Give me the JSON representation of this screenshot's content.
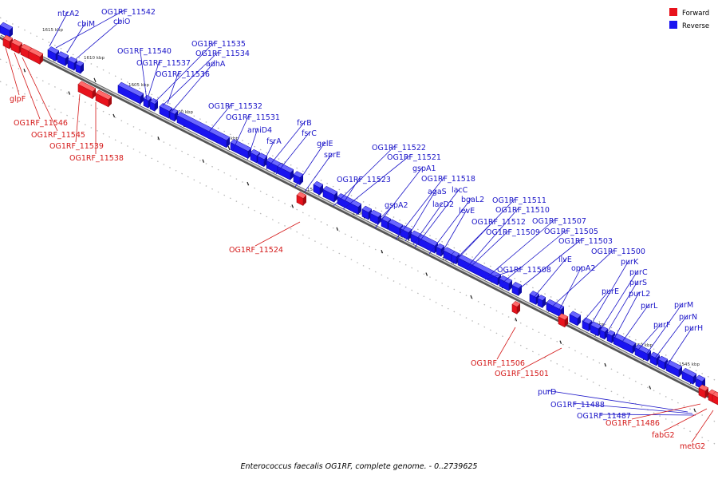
{
  "caption": "Enterococcus faecalis OG1RF, complete genome. - 0..2739625",
  "colors": {
    "forward": "#e8121c",
    "reverse": "#1a14f0",
    "forward_label": "#d41818",
    "reverse_label": "#1a14c8"
  },
  "legend": {
    "forward_label": "Forward",
    "reverse_label": "Reverse"
  },
  "ticks": [
    "1615 kbp",
    "1610 kbp",
    "1605 kbp",
    "1600 kbp",
    "1595 kbp",
    "1590 kbp",
    "1585 kbp",
    "1580 kbp",
    "1575 kbp",
    "1570 kbp",
    "1565 kbp",
    "1560 kbp",
    "1555 kbp",
    "1550 kbp",
    "1545 kbp"
  ],
  "reverse_labels": [
    "ntcA2",
    "OG1RF_11542",
    "cbiM",
    "cbiO",
    "OG1RF_11540",
    "OG1RF_11535",
    "OG1RF_11534",
    "OG1RF_11537",
    "adhA",
    "OG1RF_11536",
    "OG1RF_11532",
    "OG1RF_11531",
    "amiD4",
    "fsrB",
    "fsrC",
    "fsrA",
    "gelE",
    "sprE",
    "OG1RF_11522",
    "OG1RF_11521",
    "gspA1",
    "OG1RF_11523",
    "OG1RF_11518",
    "agaS",
    "lacC",
    "gspA2",
    "lacD2",
    "bgaL2",
    "OG1RF_11511",
    "levE",
    "OG1RF_11510",
    "OG1RF_11512",
    "OG1RF_11507",
    "OG1RF_11509",
    "OG1RF_11505",
    "OG1RF_11503",
    "OG1RF_11508",
    "ilvE",
    "OG1RF_11500",
    "oppA2",
    "purK",
    "purC",
    "purE",
    "purS",
    "purL2",
    "purL",
    "purM",
    "purN",
    "purF",
    "purH",
    "purD",
    "OG1RF_11488",
    "OG1RF_11487"
  ],
  "forward_labels": [
    "glpF",
    "OG1RF_11546",
    "OG1RF_11545",
    "OG1RF_11539",
    "OG1RF_11538",
    "OG1RF_11524",
    "OG1RF_11506",
    "OG1RF_11501",
    "OG1RF_11486",
    "fabG2",
    "metG2"
  ]
}
